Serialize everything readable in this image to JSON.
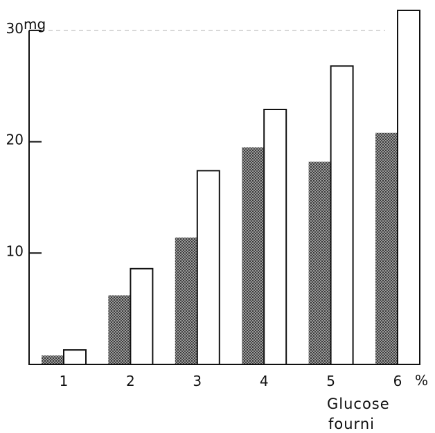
{
  "chart_data": {
    "type": "bar",
    "categories": [
      "1",
      "2",
      "3",
      "4",
      "5",
      "6"
    ],
    "series": [
      {
        "values": [
          0.8,
          6.2,
          11.4,
          19.5,
          18.2,
          20.8
        ],
        "color": "#7a7a7a",
        "fill": "stippled-gray"
      },
      {
        "values": [
          1.3,
          8.6,
          17.4,
          22.9,
          26.8,
          31.8
        ],
        "color": "#ffffff",
        "fill": "white-outlined"
      }
    ],
    "y_ticks": [
      "10",
      "20",
      "30"
    ],
    "y_unit": "mg",
    "x_unit": "%",
    "xlabel": [
      "Glucose",
      "fourni"
    ],
    "ylim": [
      0,
      32
    ],
    "grid": false,
    "reference_line_value": 30
  }
}
